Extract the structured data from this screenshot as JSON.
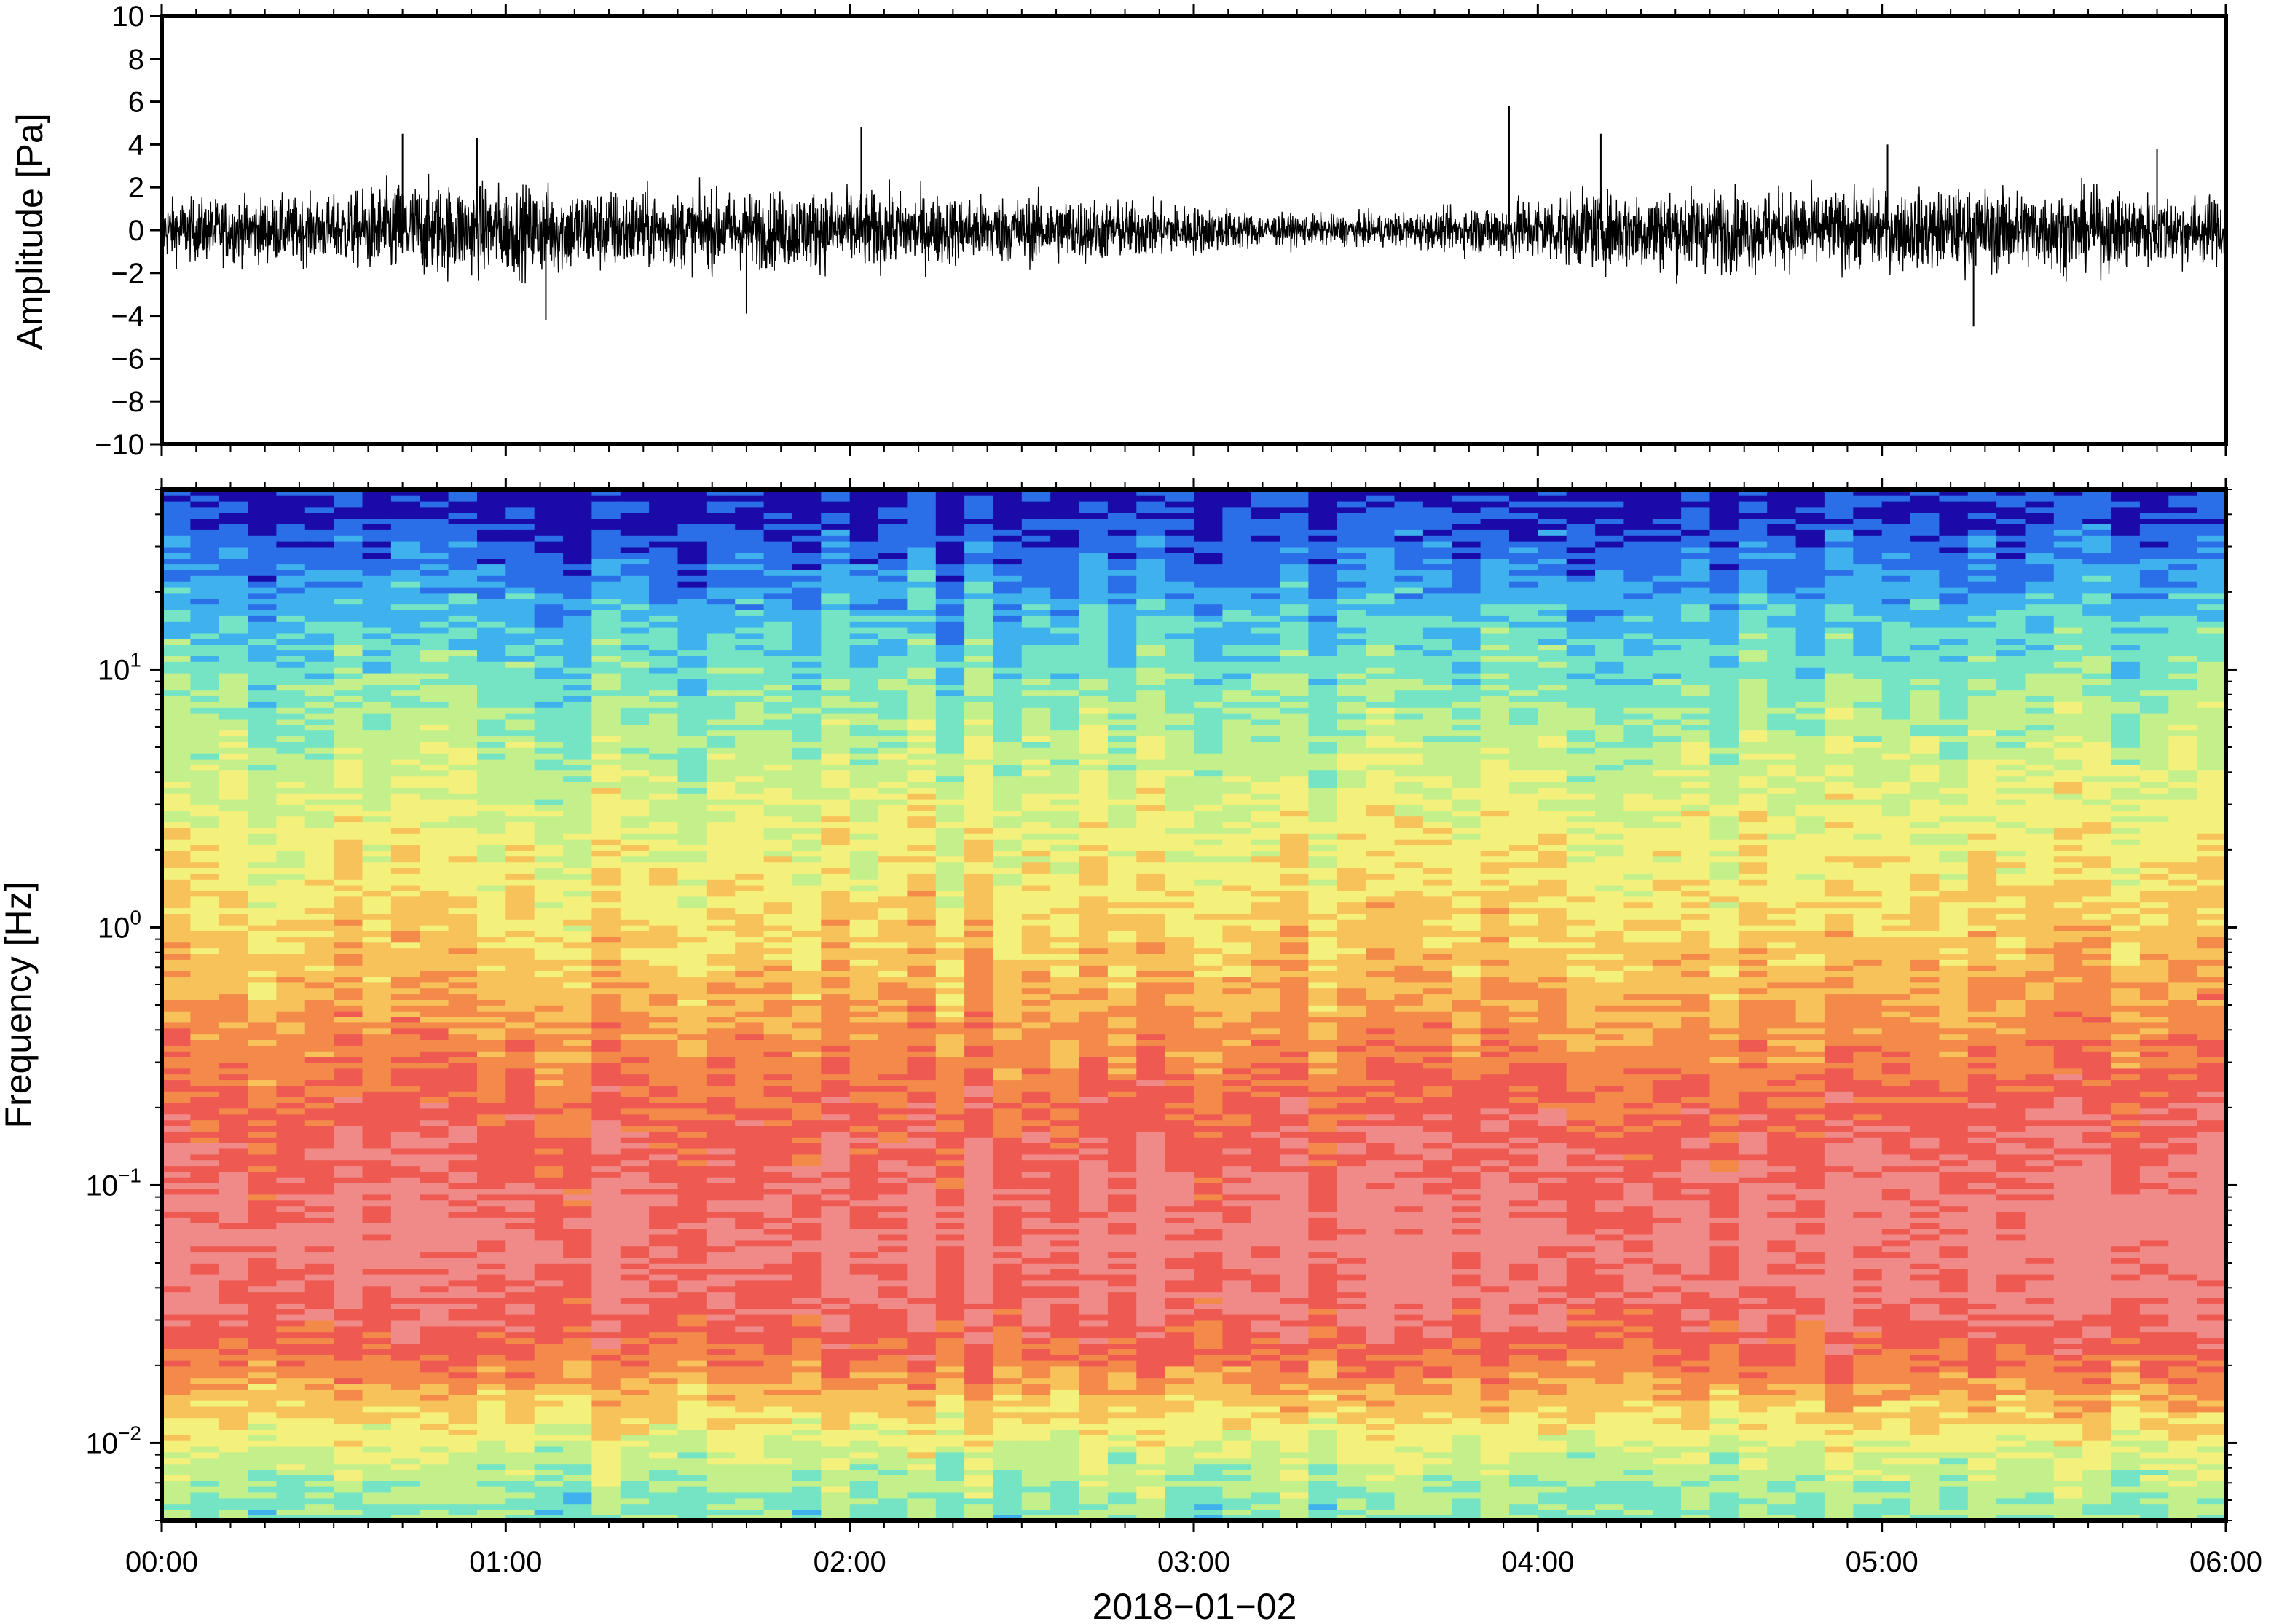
{
  "chart_data": [
    {
      "type": "line",
      "panel": "waveform",
      "title": "",
      "xlabel": "",
      "ylabel": "Amplitude [Pa]",
      "xlim": [
        "00:00",
        "06:00"
      ],
      "ylim": [
        -10,
        10
      ],
      "y_ticks": [
        -10,
        -8,
        -6,
        -4,
        -2,
        0,
        2,
        4,
        6,
        8,
        10
      ],
      "y_tick_labels": [
        "−10",
        "−8",
        "−6",
        "−4",
        "−2",
        "0",
        "2",
        "4",
        "6",
        "8",
        "10"
      ],
      "grid": false,
      "line_color": "#000000",
      "series": [
        {
          "envelope_time": [
            "00:00",
            "00:30",
            "00:40",
            "01:00",
            "01:10",
            "01:30",
            "02:00",
            "02:20",
            "02:40",
            "03:00",
            "03:15",
            "03:30",
            "03:45",
            "04:00",
            "04:20",
            "04:40",
            "05:00",
            "05:20",
            "05:40",
            "06:00"
          ],
          "envelope_amplitude": [
            1.8,
            1.9,
            2.8,
            2.6,
            2.6,
            2.2,
            2.3,
            2.0,
            1.9,
            1.4,
            0.9,
            0.9,
            1.2,
            2.0,
            2.4,
            2.3,
            2.2,
            2.4,
            2.3,
            1.9
          ],
          "peaks": [
            {
              "time": "00:42",
              "value": 4.5
            },
            {
              "time": "00:55",
              "value": 4.3
            },
            {
              "time": "01:07",
              "value": -4.2
            },
            {
              "time": "02:02",
              "value": 4.8
            },
            {
              "time": "03:55",
              "value": 5.8
            },
            {
              "time": "04:11",
              "value": 4.5
            },
            {
              "time": "05:01",
              "value": 4.0
            },
            {
              "time": "05:16",
              "value": -4.5
            },
            {
              "time": "05:48",
              "value": 3.8
            },
            {
              "time": "01:42",
              "value": -3.9
            }
          ]
        }
      ]
    },
    {
      "type": "heatmap",
      "panel": "spectrogram",
      "title": "",
      "xlabel": "2018−01−02",
      "ylabel": "Frequency [Hz]",
      "xlim": [
        "00:00",
        "06:00"
      ],
      "ylim": [
        0.005,
        50
      ],
      "y_scale": "log",
      "y_ticks": [
        0.01,
        0.1,
        1,
        10
      ],
      "y_tick_labels": [
        {
          "base": "10",
          "exp": "−2"
        },
        {
          "base": "10",
          "exp": "−1"
        },
        {
          "base": "10",
          "exp": "0"
        },
        {
          "base": "10",
          "exp": "1"
        }
      ],
      "x_ticks": [
        "00:00",
        "01:00",
        "02:00",
        "03:00",
        "04:00",
        "05:00",
        "06:00"
      ],
      "grid": false,
      "colormap": [
        "#1a0aa8",
        "#2a6ee8",
        "#3fb2ee",
        "#74e4c4",
        "#c4f08c",
        "#f4f07c",
        "#f8c25a",
        "#f38a4a",
        "#ee5a52",
        "#f08a88"
      ],
      "time_bins": 72,
      "bands": [
        {
          "freq_hz": 40,
          "level": 0.3
        },
        {
          "freq_hz": 25,
          "level": 1.3
        },
        {
          "freq_hz": 15,
          "level": 2.4
        },
        {
          "freq_hz": 8,
          "level": 3.4
        },
        {
          "freq_hz": 3,
          "level": 4.6
        },
        {
          "freq_hz": 1,
          "level": 5.6
        },
        {
          "freq_hz": 0.4,
          "level": 6.8
        },
        {
          "freq_hz": 0.15,
          "level": 8.2
        },
        {
          "freq_hz": 0.06,
          "level": 8.9
        },
        {
          "freq_hz": 0.03,
          "level": 8.3
        },
        {
          "freq_hz": 0.02,
          "level": 7.2
        },
        {
          "freq_hz": 0.01,
          "level": 4.6
        },
        {
          "freq_hz": 0.006,
          "level": 3.4
        }
      ]
    }
  ]
}
